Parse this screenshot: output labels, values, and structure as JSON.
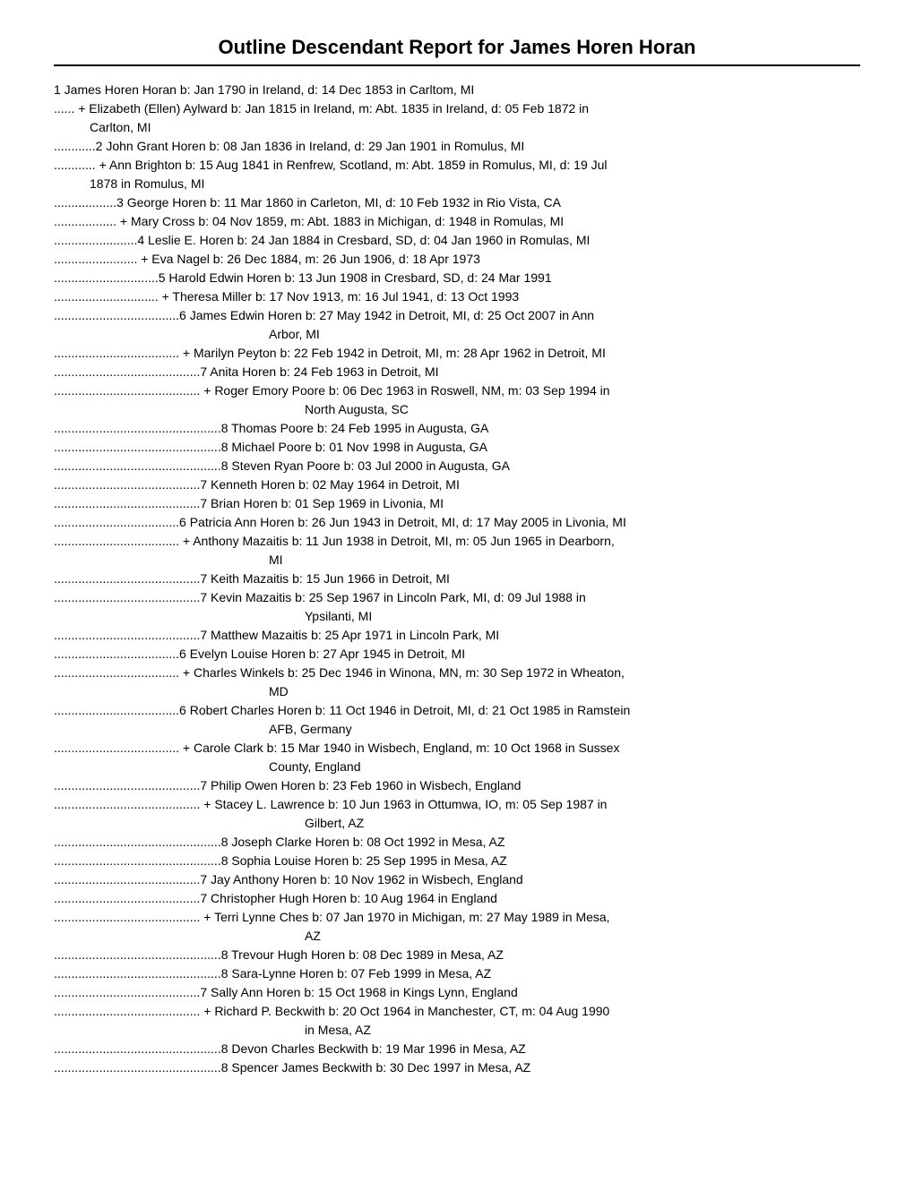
{
  "title": "Outline Descendant Report for James Horen Horan",
  "entries": [
    {
      "prefix": "",
      "gen": "1",
      "text": "James Horen Horan b: Jan 1790 in Ireland, d: 14 Dec 1853 in Carltom, MI",
      "indent": 0
    },
    {
      "prefix": "...... ",
      "gen": "",
      "text": "+ Elizabeth (Ellen) Aylward b: Jan 1815 in Ireland, m: Abt. 1835 in Ireland, d: 05 Feb 1872 in",
      "cont": "Carlton, MI",
      "indent": 0
    },
    {
      "prefix": "............",
      "gen": "2",
      "text": "John Grant Horen b: 08 Jan 1836 in Ireland, d: 29 Jan 1901 in Romulus, MI",
      "indent": 0
    },
    {
      "prefix": "............ ",
      "gen": "",
      "text": "   + Ann Brighton b: 15 Aug 1841 in Renfrew, Scotland, m: Abt. 1859 in Romulus, MI, d: 19 Jul",
      "cont": "1878 in Romulus, MI",
      "indent": 0
    },
    {
      "prefix": "..................",
      "gen": "3",
      "text": "George Horen b: 11 Mar 1860 in Carleton, MI, d: 10 Feb 1932 in Rio Vista, CA",
      "indent": 0
    },
    {
      "prefix": ".................. ",
      "gen": "",
      "text": "   + Mary Cross b: 04 Nov 1859, m: Abt. 1883 in Michigan, d: 1948 in Romulas, MI",
      "indent": 0
    },
    {
      "prefix": "........................",
      "gen": "4",
      "text": "Leslie E. Horen b: 24 Jan 1884 in Cresbard, SD, d: 04 Jan 1960 in Romulas, MI",
      "indent": 0
    },
    {
      "prefix": "........................ ",
      "gen": "",
      "text": "   + Eva Nagel b: 26 Dec 1884, m: 26 Jun 1906, d: 18 Apr 1973",
      "indent": 0
    },
    {
      "prefix": "..............................",
      "gen": "5",
      "text": "Harold Edwin Horen b: 13 Jun 1908 in Cresbard, SD, d: 24 Mar 1991",
      "indent": 0
    },
    {
      "prefix": ".............................. ",
      "gen": "",
      "text": "   + Theresa Miller b: 17 Nov 1913, m: 16 Jul 1941, d: 13 Oct 1993",
      "indent": 0
    },
    {
      "prefix": "....................................",
      "gen": "6",
      "text": "James Edwin Horen b: 27 May 1942 in Detroit, MI, d: 25 Oct 2007 in Ann",
      "cont": "Arbor, MI",
      "indent": 240
    },
    {
      "prefix": ".................................... ",
      "gen": "",
      "text": "   + Marilyn Peyton b: 22 Feb 1942 in Detroit, MI, m: 28 Apr 1962 in Detroit, MI",
      "indent": 0
    },
    {
      "prefix": "..........................................",
      "gen": "7",
      "text": "Anita Horen b: 24 Feb 1963 in Detroit, MI",
      "indent": 0
    },
    {
      "prefix": ".......................................... ",
      "gen": "",
      "text": "   + Roger Emory Poore b: 06 Dec 1963 in Roswell, NM, m: 03 Sep 1994 in",
      "cont": "North Augusta, SC",
      "indent": 280
    },
    {
      "prefix": "................................................",
      "gen": "8",
      "text": "Thomas Poore b: 24 Feb 1995 in Augusta, GA",
      "indent": 0
    },
    {
      "prefix": "................................................",
      "gen": "8",
      "text": "Michael Poore b: 01 Nov 1998 in Augusta, GA",
      "indent": 0
    },
    {
      "prefix": "................................................",
      "gen": "8",
      "text": "Steven Ryan Poore b: 03 Jul 2000 in Augusta, GA",
      "indent": 0
    },
    {
      "prefix": "..........................................",
      "gen": "7",
      "text": "Kenneth Horen b: 02 May 1964 in Detroit, MI",
      "indent": 0
    },
    {
      "prefix": "..........................................",
      "gen": "7",
      "text": "Brian Horen b: 01 Sep 1969 in Livonia, MI",
      "indent": 0
    },
    {
      "prefix": "....................................",
      "gen": "6",
      "text": "Patricia Ann Horen b: 26 Jun 1943 in Detroit, MI, d: 17 May 2005 in Livonia, MI",
      "indent": 0
    },
    {
      "prefix": ".................................... ",
      "gen": "",
      "text": "   + Anthony Mazaitis b: 11 Jun 1938 in Detroit, MI, m: 05 Jun 1965 in Dearborn,",
      "cont": "MI",
      "indent": 240
    },
    {
      "prefix": "..........................................",
      "gen": "7",
      "text": "Keith Mazaitis b: 15 Jun 1966 in Detroit, MI",
      "indent": 0
    },
    {
      "prefix": "..........................................",
      "gen": "7",
      "text": "Kevin Mazaitis b: 25 Sep 1967 in Lincoln Park, MI, d: 09 Jul 1988 in",
      "cont": "Ypsilanti, MI",
      "indent": 280
    },
    {
      "prefix": "..........................................",
      "gen": "7",
      "text": "Matthew Mazaitis b: 25 Apr 1971 in Lincoln Park, MI",
      "indent": 0
    },
    {
      "prefix": "....................................",
      "gen": "6",
      "text": "Evelyn Louise Horen b: 27 Apr 1945 in Detroit, MI",
      "indent": 0
    },
    {
      "prefix": ".................................... ",
      "gen": "",
      "text": "   + Charles Winkels b: 25 Dec 1946 in Winona, MN, m: 30 Sep 1972 in Wheaton,",
      "cont": "MD",
      "indent": 240
    },
    {
      "prefix": "....................................",
      "gen": "6",
      "text": "Robert Charles Horen b: 11 Oct 1946 in Detroit, MI, d: 21 Oct 1985 in Ramstein",
      "cont": "AFB, Germany",
      "indent": 240
    },
    {
      "prefix": ".................................... ",
      "gen": "",
      "text": "   + Carole Clark b: 15 Mar 1940 in Wisbech, England, m: 10 Oct 1968 in Sussex",
      "cont": "County, England",
      "indent": 240
    },
    {
      "prefix": "..........................................",
      "gen": "7",
      "text": "Philip Owen Horen b: 23 Feb 1960 in Wisbech, England",
      "indent": 0
    },
    {
      "prefix": ".......................................... ",
      "gen": "",
      "text": "   + Stacey L. Lawrence b: 10 Jun 1963 in Ottumwa, IO, m: 05 Sep 1987 in",
      "cont": "Gilbert, AZ",
      "indent": 280
    },
    {
      "prefix": "................................................",
      "gen": "8",
      "text": "Joseph Clarke Horen b: 08 Oct 1992 in Mesa, AZ",
      "indent": 0
    },
    {
      "prefix": "................................................",
      "gen": "8",
      "text": "Sophia Louise Horen b: 25 Sep 1995 in Mesa, AZ",
      "indent": 0
    },
    {
      "prefix": "..........................................",
      "gen": "7",
      "text": "Jay Anthony Horen b: 10 Nov 1962 in Wisbech, England",
      "indent": 0
    },
    {
      "prefix": "..........................................",
      "gen": "7",
      "text": "Christopher Hugh Horen b: 10 Aug 1964 in England",
      "indent": 0
    },
    {
      "prefix": ".......................................... ",
      "gen": "",
      "text": "   + Terri Lynne Ches b: 07 Jan 1970 in Michigan, m: 27 May 1989 in Mesa,",
      "cont": "AZ",
      "indent": 280
    },
    {
      "prefix": "................................................",
      "gen": "8",
      "text": "Trevour Hugh Horen b: 08 Dec 1989 in Mesa, AZ",
      "indent": 0
    },
    {
      "prefix": "................................................",
      "gen": "8",
      "text": "Sara-Lynne Horen b: 07 Feb 1999 in Mesa, AZ",
      "indent": 0
    },
    {
      "prefix": "..........................................",
      "gen": "7",
      "text": "Sally Ann Horen b: 15 Oct 1968 in Kings Lynn, England",
      "indent": 0
    },
    {
      "prefix": ".......................................... ",
      "gen": "",
      "text": "   + Richard P. Beckwith b: 20 Oct 1964 in Manchester, CT, m: 04 Aug 1990",
      "cont": "in Mesa, AZ",
      "indent": 280
    },
    {
      "prefix": "................................................",
      "gen": "8",
      "text": "Devon Charles Beckwith b: 19 Mar 1996 in Mesa, AZ",
      "indent": 0
    },
    {
      "prefix": "................................................",
      "gen": "8",
      "text": "Spencer James Beckwith b: 30 Dec 1997 in Mesa, AZ",
      "indent": 0
    }
  ]
}
